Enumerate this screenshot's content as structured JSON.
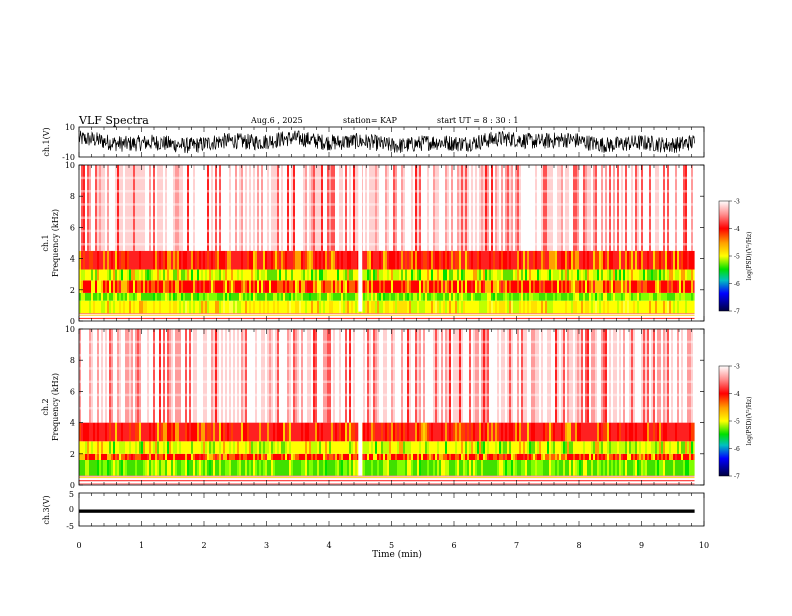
{
  "header": {
    "title": "VLF Spectra",
    "date": "Aug.6 , 2025",
    "station": "station= KAP",
    "start": "start UT = 8 : 30 : 1"
  },
  "colorbar": {
    "label": "log(PSD)(V²/Hz)",
    "ticks": [
      "-3",
      "-4",
      "-5",
      "-6",
      "-7"
    ],
    "colors": [
      "#ffffff",
      "#ff8080",
      "#ff0000",
      "#ffa000",
      "#ffff00",
      "#00e000",
      "#00c0c0",
      "#0000ff",
      "#000040"
    ]
  },
  "chart_data": [
    {
      "type": "line",
      "name": "ch1-waveform",
      "ylabel": "ch.1(V)",
      "ylim": [
        -10,
        10
      ],
      "ytick_labels": [
        "10",
        "-10"
      ],
      "x_range": [
        0,
        9.85
      ],
      "approx_level": 0,
      "approx_amplitude": 9
    },
    {
      "type": "heatmap",
      "name": "ch1-spectrogram",
      "ylabel": "ch.1\nFrequency (kHz)",
      "ylim": [
        0,
        10
      ],
      "ytick_labels": [
        "0",
        "2",
        "4",
        "6",
        "8",
        "10"
      ],
      "x_range": [
        0,
        9.85
      ],
      "gap_at_min": 4.5,
      "zones": [
        {
          "f_from": 0.0,
          "f_to": 0.5,
          "level": "bands"
        },
        {
          "f_from": 0.5,
          "f_to": 1.3,
          "level": "yellow"
        },
        {
          "f_from": 1.3,
          "f_to": 1.8,
          "level": "green"
        },
        {
          "f_from": 1.8,
          "f_to": 2.6,
          "level": "red-yellow"
        },
        {
          "f_from": 2.6,
          "f_to": 3.3,
          "level": "yellow-green"
        },
        {
          "f_from": 3.3,
          "f_to": 4.5,
          "level": "red"
        },
        {
          "f_from": 4.5,
          "f_to": 10.0,
          "level": "light-red"
        }
      ]
    },
    {
      "type": "heatmap",
      "name": "ch2-spectrogram",
      "ylabel": "ch.2\nFrequency (kHz)",
      "ylim": [
        0,
        10
      ],
      "ytick_labels": [
        "0",
        "2",
        "4",
        "6",
        "8",
        "10"
      ],
      "x_range": [
        0,
        9.85
      ],
      "gap_at_min": 4.5,
      "zones": [
        {
          "f_from": 0.0,
          "f_to": 0.6,
          "level": "bands"
        },
        {
          "f_from": 0.6,
          "f_to": 1.6,
          "level": "green"
        },
        {
          "f_from": 1.6,
          "f_to": 2.0,
          "level": "red-yellow"
        },
        {
          "f_from": 2.0,
          "f_to": 2.8,
          "level": "yellow-green"
        },
        {
          "f_from": 2.8,
          "f_to": 4.0,
          "level": "red"
        },
        {
          "f_from": 4.0,
          "f_to": 10.0,
          "level": "light-red"
        }
      ]
    },
    {
      "type": "line",
      "name": "ch3-waveform",
      "ylabel": "ch.3(V)",
      "ylim": [
        -5,
        5
      ],
      "ytick_labels": [
        "5",
        "0",
        "-5"
      ],
      "x_range": [
        0,
        9.85
      ],
      "approx_level": -0.5,
      "approx_amplitude": 0.5
    }
  ],
  "xaxis": {
    "label": "Time (min)",
    "ticks": [
      "0",
      "1",
      "2",
      "3",
      "4",
      "5",
      "6",
      "7",
      "8",
      "9",
      "10"
    ],
    "xlim": [
      0,
      10
    ]
  }
}
